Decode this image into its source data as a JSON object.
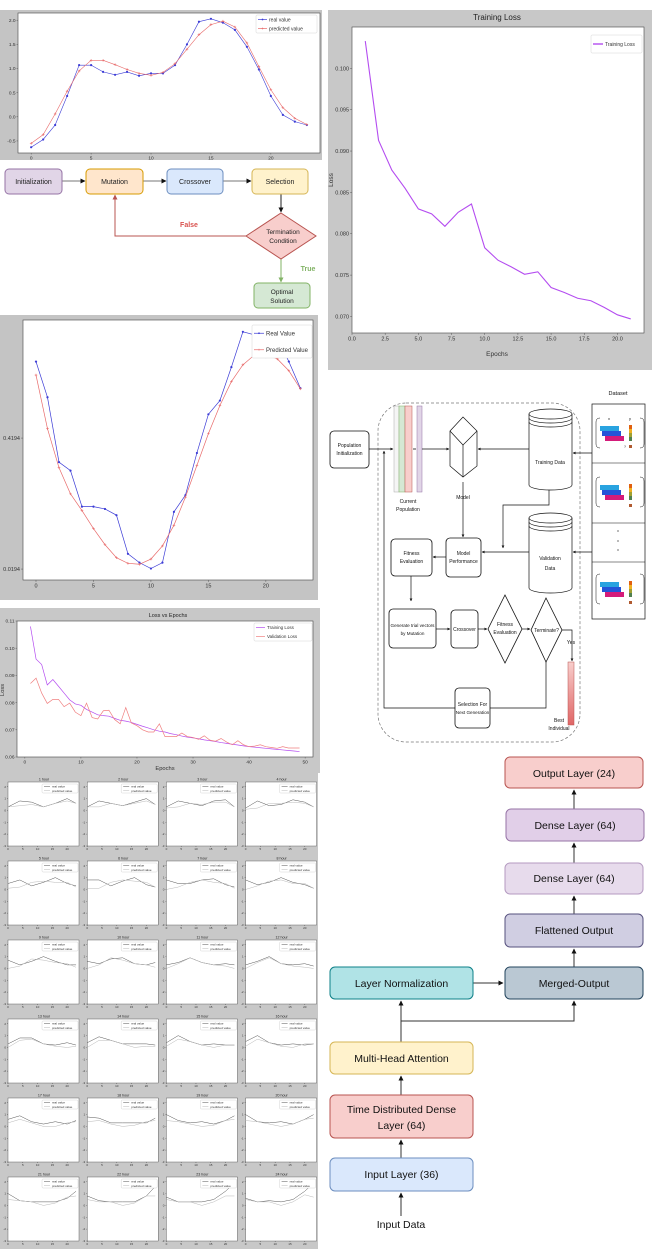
{
  "chart_data": [
    {
      "type": "line",
      "x": [
        0,
        1,
        2,
        3,
        4,
        5,
        6,
        7,
        8,
        9,
        10,
        11,
        12,
        13,
        14,
        15,
        16,
        17,
        18,
        19,
        20,
        21,
        22,
        23
      ],
      "xlim": [
        -1.1,
        24.1
      ],
      "ylim": [
        -0.75,
        2.15
      ],
      "xticks": [
        "0",
        "5",
        "10",
        "15",
        "20"
      ],
      "yticks": [
        "-0.5",
        "0.0",
        "0.5",
        "1.0",
        "1.5",
        "2.0"
      ],
      "grid": false,
      "legend": "top-right",
      "series": [
        {
          "name": "real value",
          "color": "#3b3bd6",
          "marker": "dot",
          "y": [
            -0.63,
            -0.47,
            -0.17,
            0.43,
            1.07,
            1.07,
            0.93,
            0.87,
            0.93,
            0.85,
            0.9,
            0.9,
            1.07,
            1.5,
            1.97,
            2.03,
            1.95,
            1.8,
            1.45,
            0.98,
            0.43,
            0.04,
            -0.1,
            -0.17
          ]
        },
        {
          "name": "predicted value",
          "color": "#e86a6a",
          "marker": "plus",
          "y": [
            -0.55,
            -0.37,
            0.06,
            0.53,
            0.95,
            1.17,
            1.17,
            1.08,
            0.98,
            0.9,
            0.86,
            0.92,
            1.1,
            1.4,
            1.7,
            1.91,
            1.98,
            1.86,
            1.53,
            1.04,
            0.56,
            0.19,
            -0.03,
            -0.16
          ]
        }
      ]
    },
    {
      "type": "line",
      "title": "Training Loss",
      "xlabel": "Epochs",
      "ylabel": "Loss",
      "x": [
        1,
        2,
        3,
        4,
        5,
        6,
        7,
        8,
        9,
        10,
        11,
        12,
        13,
        14,
        15,
        16,
        17,
        18,
        19,
        20,
        21
      ],
      "xlim": [
        0,
        22
      ],
      "ylim": [
        0.068,
        0.105
      ],
      "xticks": [
        "0.0",
        "2.5",
        "5.0",
        "7.5",
        "10.0",
        "12.5",
        "15.0",
        "17.5",
        "20.0"
      ],
      "yticks": [
        "0.070",
        "0.075",
        "0.080",
        "0.085",
        "0.090",
        "0.095",
        "0.100"
      ],
      "grid": false,
      "legend": "top-right",
      "series": [
        {
          "name": "Training Loss",
          "color": "#b44cf0",
          "y": [
            0.1033,
            0.0913,
            0.0877,
            0.0855,
            0.083,
            0.0824,
            0.0809,
            0.0826,
            0.0836,
            0.0783,
            0.0768,
            0.076,
            0.0751,
            0.0754,
            0.0735,
            0.0729,
            0.0722,
            0.0719,
            0.0711,
            0.0702,
            0.0697
          ]
        }
      ]
    },
    {
      "type": "line",
      "x": [
        0,
        1,
        2,
        3,
        4,
        5,
        6,
        7,
        8,
        9,
        10,
        11,
        12,
        13,
        14,
        15,
        16,
        17,
        18,
        19,
        20,
        21,
        22,
        23
      ],
      "xlim": [
        -1.13,
        24.1
      ],
      "ylim": [
        -0.014,
        0.78
      ],
      "xticks": [
        "0",
        "5",
        "10",
        "15",
        "20"
      ],
      "yticks": [
        "0.0194",
        "0.4194"
      ],
      "grid": false,
      "legend": "top-right",
      "series": [
        {
          "name": "Real Value",
          "color": "#3b3bd6",
          "marker": "dot",
          "y": [
            0.653,
            0.544,
            0.346,
            0.32,
            0.21,
            0.21,
            0.203,
            0.184,
            0.066,
            0.039,
            0.021,
            0.039,
            0.194,
            0.245,
            0.374,
            0.492,
            0.534,
            0.636,
            0.744,
            0.735,
            0.667,
            0.725,
            0.653,
            0.572
          ]
        },
        {
          "name": "Predicted Value",
          "color": "#e86a6a",
          "marker": "plus",
          "y": [
            0.612,
            0.448,
            0.329,
            0.249,
            0.198,
            0.143,
            0.094,
            0.054,
            0.037,
            0.034,
            0.05,
            0.09,
            0.153,
            0.239,
            0.336,
            0.433,
            0.519,
            0.592,
            0.643,
            0.673,
            0.676,
            0.661,
            0.625,
            0.57
          ]
        }
      ]
    },
    {
      "type": "line",
      "title": "Loss vs Epochs",
      "xlabel": "Epochs",
      "ylabel": "Loss",
      "x": [
        1,
        2,
        3,
        4,
        5,
        6,
        7,
        8,
        9,
        10,
        11,
        12,
        13,
        14,
        15,
        16,
        17,
        18,
        19,
        20,
        21,
        22,
        23,
        24,
        25,
        26,
        27,
        28,
        29,
        30,
        31,
        32,
        33,
        34,
        35,
        36,
        37,
        38,
        39,
        40,
        41,
        42,
        43,
        44,
        45,
        46,
        47,
        48,
        49
      ],
      "xlim": [
        -1.4,
        51.4
      ],
      "ylim": [
        0.06,
        0.11
      ],
      "xticks": [
        "0",
        "10",
        "20",
        "30",
        "40",
        "50"
      ],
      "yticks": [
        "0.06",
        "0.07",
        "0.08",
        "0.09",
        "0.10",
        "0.11"
      ],
      "grid": false,
      "legend": "top-right",
      "series": [
        {
          "name": "Training Loss",
          "color": "#b44cf0",
          "y": [
            0.108,
            0.096,
            0.094,
            0.0865,
            0.0885,
            0.086,
            0.0835,
            0.081,
            0.0795,
            0.079,
            0.0775,
            0.0765,
            0.0755,
            0.0752,
            0.075,
            0.0742,
            0.0735,
            0.0732,
            0.0727,
            0.072,
            0.0713,
            0.0707,
            0.07,
            0.0695,
            0.0692,
            0.0686,
            0.0682,
            0.0677,
            0.0673,
            0.067,
            0.0667,
            0.0663,
            0.066,
            0.0657,
            0.0653,
            0.065,
            0.0647,
            0.0644,
            0.0641,
            0.0638,
            0.0636,
            0.0634,
            0.0632,
            0.063,
            0.0628,
            0.0626,
            0.0624,
            0.0622,
            0.062
          ]
        },
        {
          "name": "Validation Loss",
          "color": "#f08080",
          "y": [
            0.087,
            0.089,
            0.0835,
            0.0797,
            0.0812,
            0.0812,
            0.0785,
            0.0798,
            0.0765,
            0.0752,
            0.0798,
            0.0745,
            0.074,
            0.077,
            0.0772,
            0.0738,
            0.0722,
            0.0782,
            0.0725,
            0.0715,
            0.07,
            0.0692,
            0.0692,
            0.0722,
            0.0675,
            0.0675,
            0.0675,
            0.0688,
            0.0675,
            0.0672,
            0.0665,
            0.0678,
            0.0662,
            0.0658,
            0.0668,
            0.0655,
            0.0645,
            0.066,
            0.0645,
            0.0638,
            0.064,
            0.0645,
            0.0638,
            0.0635,
            0.0632,
            0.0638,
            0.0633,
            0.0633,
            0.0633
          ]
        }
      ]
    },
    {
      "type": "line",
      "layout": "small-multiples 6x4",
      "x": [
        0,
        4,
        8,
        12,
        16,
        20,
        23
      ],
      "xlim": [
        0,
        24
      ],
      "ylim": [
        -3,
        2.4
      ],
      "xticks": [
        "0",
        "5",
        "10",
        "15",
        "20"
      ],
      "yticks": [
        "-3",
        "-2",
        "-1",
        "0",
        "1",
        "2"
      ],
      "legend": [
        "real value",
        "predicted value"
      ],
      "colors": {
        "real": "#555555",
        "predicted": "#b8b8b8"
      },
      "panels": [
        {
          "title": "1 hour",
          "real": [
            0.3,
            0.8,
            0.7,
            0.3,
            0.6,
            1.0,
            0.6
          ],
          "predicted": [
            0.3,
            0.4,
            0.5,
            0.3,
            0.6,
            0.8,
            0.6
          ]
        },
        {
          "title": "2 hour",
          "real": [
            0.3,
            0.8,
            0.6,
            0.4,
            0.7,
            1.0,
            0.5
          ],
          "predicted": [
            0.3,
            0.3,
            0.6,
            0.4,
            0.6,
            0.8,
            0.5
          ]
        },
        {
          "title": "3 hour",
          "real": [
            0.3,
            0.8,
            0.6,
            0.4,
            0.8,
            0.9,
            0.3
          ],
          "predicted": [
            0.2,
            0.3,
            0.6,
            0.5,
            0.7,
            0.7,
            0.3
          ]
        },
        {
          "title": "4 hour",
          "real": [
            0.2,
            0.8,
            0.4,
            0.5,
            0.9,
            0.7,
            0.3
          ],
          "predicted": [
            0.1,
            0.2,
            0.6,
            0.6,
            0.7,
            0.6,
            0.3
          ]
        },
        {
          "title": "5 hour",
          "real": [
            0.5,
            0.8,
            0.3,
            0.6,
            1.0,
            0.5,
            0.3
          ],
          "predicted": [
            0.1,
            0.2,
            0.6,
            0.7,
            0.6,
            0.6,
            0.2
          ]
        },
        {
          "title": "6 hour",
          "real": [
            0.8,
            0.8,
            0.3,
            0.7,
            1.0,
            0.4,
            0.2
          ],
          "predicted": [
            0.1,
            0.1,
            0.6,
            0.8,
            0.7,
            0.6,
            0.2
          ]
        },
        {
          "title": "7 hour",
          "real": [
            0.8,
            0.5,
            0.5,
            0.8,
            0.9,
            0.4,
            0.2
          ],
          "predicted": [
            0.0,
            0.2,
            0.6,
            0.8,
            0.6,
            0.5,
            0.1
          ]
        },
        {
          "title": "8 hour",
          "real": [
            0.8,
            0.4,
            0.6,
            1.0,
            0.6,
            0.4,
            0.1
          ],
          "predicted": [
            0.0,
            0.3,
            0.7,
            0.8,
            0.5,
            0.5,
            0.1
          ]
        },
        {
          "title": "9 hour",
          "real": [
            0.7,
            0.3,
            0.6,
            1.0,
            0.6,
            0.3,
            0.3
          ],
          "predicted": [
            0.0,
            0.2,
            0.8,
            0.7,
            0.5,
            0.4,
            0.1
          ]
        },
        {
          "title": "10 hour",
          "real": [
            0.6,
            0.4,
            0.8,
            0.9,
            0.4,
            0.3,
            0.5
          ],
          "predicted": [
            0.0,
            0.3,
            0.9,
            0.7,
            0.4,
            0.3,
            0.1
          ]
        },
        {
          "title": "11 hour",
          "real": [
            0.3,
            0.5,
            0.9,
            0.5,
            0.3,
            0.4,
            0.3
          ],
          "predicted": [
            0.0,
            0.4,
            0.9,
            0.5,
            0.3,
            0.2,
            0.0
          ]
        },
        {
          "title": "12 hour",
          "real": [
            0.3,
            0.6,
            1.0,
            0.4,
            0.3,
            0.4,
            0.2
          ],
          "predicted": [
            0.0,
            0.5,
            0.9,
            0.4,
            0.2,
            0.1,
            0.0
          ]
        },
        {
          "title": "13 hour",
          "real": [
            0.3,
            0.8,
            0.8,
            0.3,
            0.2,
            0.4,
            0.2
          ],
          "predicted": [
            0.0,
            0.6,
            0.7,
            0.3,
            0.1,
            0.0,
            0.1
          ]
        },
        {
          "title": "14 hour",
          "real": [
            0.4,
            0.9,
            0.6,
            0.3,
            0.3,
            0.3,
            0.2
          ],
          "predicted": [
            0.0,
            0.6,
            0.6,
            0.3,
            0.0,
            0.1,
            0.1
          ]
        },
        {
          "title": "15 hour",
          "real": [
            0.4,
            1.0,
            0.5,
            0.2,
            0.3,
            0.2,
            0.2
          ],
          "predicted": [
            0.1,
            0.7,
            0.5,
            0.2,
            0.0,
            0.2,
            0.2
          ]
        },
        {
          "title": "16 hour",
          "real": [
            0.5,
            1.0,
            0.4,
            0.2,
            0.3,
            0.2,
            0.3
          ],
          "predicted": [
            0.1,
            0.7,
            0.4,
            0.1,
            0.0,
            0.3,
            0.3
          ]
        },
        {
          "title": "17 hour",
          "real": [
            0.6,
            0.9,
            0.4,
            0.2,
            0.4,
            0.2,
            0.5
          ],
          "predicted": [
            0.3,
            0.6,
            0.3,
            0.0,
            0.0,
            0.3,
            0.4
          ]
        },
        {
          "title": "18 hour",
          "real": [
            0.8,
            0.7,
            0.3,
            0.3,
            0.3,
            0.3,
            0.7
          ],
          "predicted": [
            0.4,
            0.5,
            0.2,
            0.0,
            0.1,
            0.4,
            0.5
          ]
        },
        {
          "title": "19 hour",
          "real": [
            1.0,
            0.5,
            0.3,
            0.4,
            0.2,
            0.5,
            0.9
          ],
          "predicted": [
            0.5,
            0.4,
            0.2,
            0.0,
            0.1,
            0.5,
            0.6
          ]
        },
        {
          "title": "20 hour",
          "real": [
            1.0,
            0.4,
            0.3,
            0.4,
            0.2,
            0.6,
            1.0
          ],
          "predicted": [
            0.5,
            0.4,
            0.2,
            0.0,
            0.2,
            0.6,
            0.7
          ]
        },
        {
          "title": "21 hour",
          "real": [
            1.0,
            0.4,
            0.3,
            0.3,
            0.3,
            0.6,
            1.2
          ],
          "predicted": [
            0.5,
            0.4,
            0.3,
            0.0,
            0.2,
            0.7,
            0.8
          ]
        },
        {
          "title": "22 hour",
          "real": [
            0.8,
            0.4,
            0.3,
            0.3,
            0.3,
            0.8,
            1.6
          ],
          "predicted": [
            0.5,
            0.3,
            0.3,
            0.0,
            0.2,
            0.8,
            0.8
          ]
        },
        {
          "title": "23 hour",
          "real": [
            0.7,
            0.3,
            0.3,
            0.3,
            0.5,
            1.2,
            1.9
          ],
          "predicted": [
            0.5,
            0.3,
            0.3,
            0.0,
            0.3,
            0.8,
            0.8
          ]
        },
        {
          "title": "24 hour",
          "real": [
            0.6,
            0.3,
            0.4,
            0.3,
            0.5,
            1.2,
            1.9
          ],
          "predicted": [
            0.5,
            0.3,
            0.3,
            0.0,
            0.3,
            0.9,
            0.7
          ]
        }
      ]
    }
  ],
  "ga_flowchart": {
    "initialization": "Initialization",
    "mutation": "Mutation",
    "crossover": "Crossover",
    "selection": "Selection",
    "termination": [
      "Termination",
      "Condition"
    ],
    "optimal": [
      "Optimal",
      "Solution"
    ],
    "false_label": "False",
    "true_label": "True",
    "colors": {
      "false": "#d9534f",
      "true": "#82b366"
    }
  },
  "de_framework": {
    "dataset": "Dataset",
    "population_init": [
      "Population",
      "Initialization"
    ],
    "current_population": [
      "Current",
      "Population"
    ],
    "model": "Model",
    "training_data": "Training Data",
    "validation_data": [
      "Validation",
      "Data"
    ],
    "model_performance": [
      "Model",
      "Performance"
    ],
    "fitness_eval_box": [
      "Fitness",
      "Evaluation"
    ],
    "generate": [
      "Generate trial vectors",
      "by Mutation"
    ],
    "crossover": "Crossover",
    "fitness_eval_diamond": [
      "Fitness",
      "Evaluation"
    ],
    "terminate": "Terminate?",
    "yes": "Yes",
    "selection": [
      "Selection For",
      "Next Generation"
    ],
    "best": [
      "Best",
      "Individual"
    ],
    "x_label": "x",
    "y_label": "y",
    "q_label": "?"
  },
  "architecture": {
    "output": "Output Layer (24)",
    "dense2": "Dense Layer (64)",
    "dense1": "Dense Layer (64)",
    "flatten": "Flattened Output",
    "merged": "Merged-Output",
    "layernorm": "Layer Normalization",
    "mha": "Multi-Head Attention",
    "tdd": [
      "Time Distributed Dense",
      "Layer (64)"
    ],
    "input_layer": "Input Layer (36)",
    "input_data": "Input Data"
  }
}
